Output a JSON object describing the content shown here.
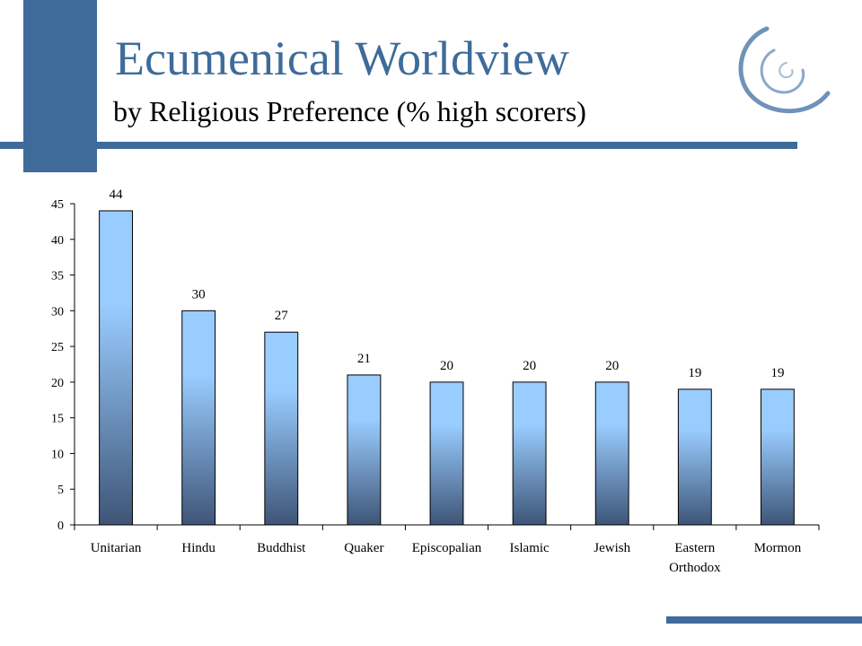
{
  "slide": {
    "title": "Ecumenical Worldview",
    "subtitle": "by Religious Preference (% high scorers)",
    "colors": {
      "accent": "#3e6b9a",
      "bar_top": "#99ccff",
      "bar_bottom": "#3e5577"
    }
  },
  "chart_data": {
    "type": "bar",
    "categories": [
      "Unitarian",
      "Hindu",
      "Buddhist",
      "Quaker",
      "Episcopalian",
      "Islamic",
      "Jewish",
      "Eastern Orthodox",
      "Mormon"
    ],
    "values": [
      44,
      30,
      27,
      21,
      20,
      20,
      20,
      19,
      19
    ],
    "ylim": [
      0,
      45
    ],
    "yticks": [
      0,
      5,
      10,
      15,
      20,
      25,
      30,
      35,
      40,
      45
    ],
    "data_labels": true,
    "legend": "none",
    "grid": false,
    "title": "",
    "xlabel": "",
    "ylabel": ""
  }
}
